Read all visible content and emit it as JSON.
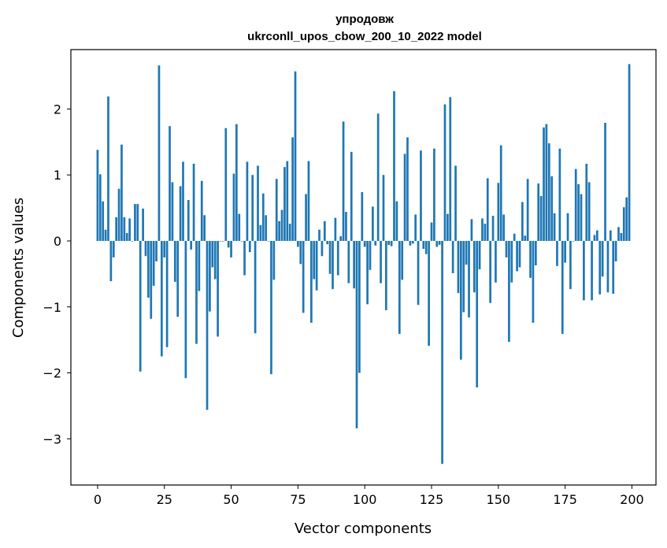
{
  "chart_data": {
    "type": "bar",
    "title": "упродовж",
    "subtitle": "ukrconll_upos_cbow_200_10_2022 model",
    "xlabel": "Vector components",
    "ylabel": "Components values",
    "xlim": [
      -10,
      209
    ],
    "ylim": [
      -3.7,
      2.9
    ],
    "xticks": [
      0,
      25,
      50,
      75,
      100,
      125,
      150,
      175,
      200
    ],
    "yticks": [
      -3,
      -2,
      -1,
      0,
      1,
      2
    ],
    "ytick_labels": [
      "−3",
      "−2",
      "−1",
      "0",
      "1",
      "2"
    ],
    "color": "#1f77b4",
    "values": [
      1.38,
      1.01,
      0.6,
      0.17,
      2.19,
      -0.61,
      -0.25,
      0.36,
      0.79,
      1.46,
      0.36,
      0.12,
      0.34,
      0.0,
      0.56,
      0.56,
      -1.98,
      0.49,
      -0.23,
      -0.86,
      -1.18,
      -0.68,
      -0.31,
      2.66,
      -1.75,
      -0.25,
      -1.61,
      1.74,
      0.89,
      -0.62,
      -1.15,
      0.83,
      1.2,
      -2.08,
      0.62,
      -0.13,
      1.17,
      -1.56,
      -0.76,
      0.91,
      0.39,
      -2.56,
      -1.07,
      -0.4,
      -0.58,
      -1.45,
      0.0,
      0.0,
      1.71,
      -0.1,
      -0.25,
      1.02,
      1.77,
      0.41,
      0.0,
      -0.52,
      1.2,
      -0.17,
      1.0,
      -1.4,
      1.14,
      0.24,
      0.72,
      0.39,
      0.0,
      -2.02,
      -0.59,
      0.94,
      0.3,
      0.47,
      1.12,
      1.21,
      0.26,
      1.57,
      2.57,
      -0.09,
      -0.35,
      -1.09,
      0.71,
      1.21,
      -1.24,
      -0.58,
      -0.75,
      0.17,
      -0.23,
      0.3,
      -0.05,
      -0.5,
      -0.73,
      0.35,
      -0.52,
      0.07,
      1.81,
      0.44,
      -0.64,
      1.35,
      -0.72,
      -2.84,
      -2.0,
      0.74,
      -0.09,
      -0.96,
      -0.44,
      0.52,
      -0.07,
      1.93,
      -0.64,
      1.0,
      -1.05,
      -0.06,
      -0.08,
      2.27,
      0.6,
      -1.41,
      -0.59,
      1.32,
      1.57,
      -0.07,
      -0.04,
      0.4,
      -0.97,
      1.37,
      -0.12,
      -0.2,
      -1.59,
      0.28,
      1.4,
      -0.09,
      -0.06,
      -3.38,
      2.07,
      0.41,
      2.18,
      -0.49,
      1.14,
      -0.79,
      -1.8,
      -1.08,
      -0.36,
      -1.16,
      0.33,
      -0.78,
      -2.22,
      -0.43,
      0.34,
      0.26,
      0.95,
      -0.94,
      0.38,
      -0.63,
      0.88,
      1.45,
      0.4,
      -0.25,
      -1.53,
      -0.63,
      0.11,
      -0.46,
      -0.4,
      0.59,
      0.08,
      0.94,
      -0.56,
      -1.24,
      -0.37,
      0.87,
      0.68,
      1.72,
      1.77,
      1.48,
      0.98,
      0.42,
      -0.38,
      1.4,
      -1.41,
      -0.33,
      0.42,
      -0.73,
      0.0,
      1.09,
      0.86,
      0.71,
      -0.9,
      1.17,
      0.89,
      -0.9,
      0.09,
      0.16,
      -0.81,
      -0.54,
      1.79,
      -0.78,
      0.16,
      -0.8,
      -0.31,
      0.21,
      0.12,
      0.51,
      0.66,
      2.68
    ]
  }
}
